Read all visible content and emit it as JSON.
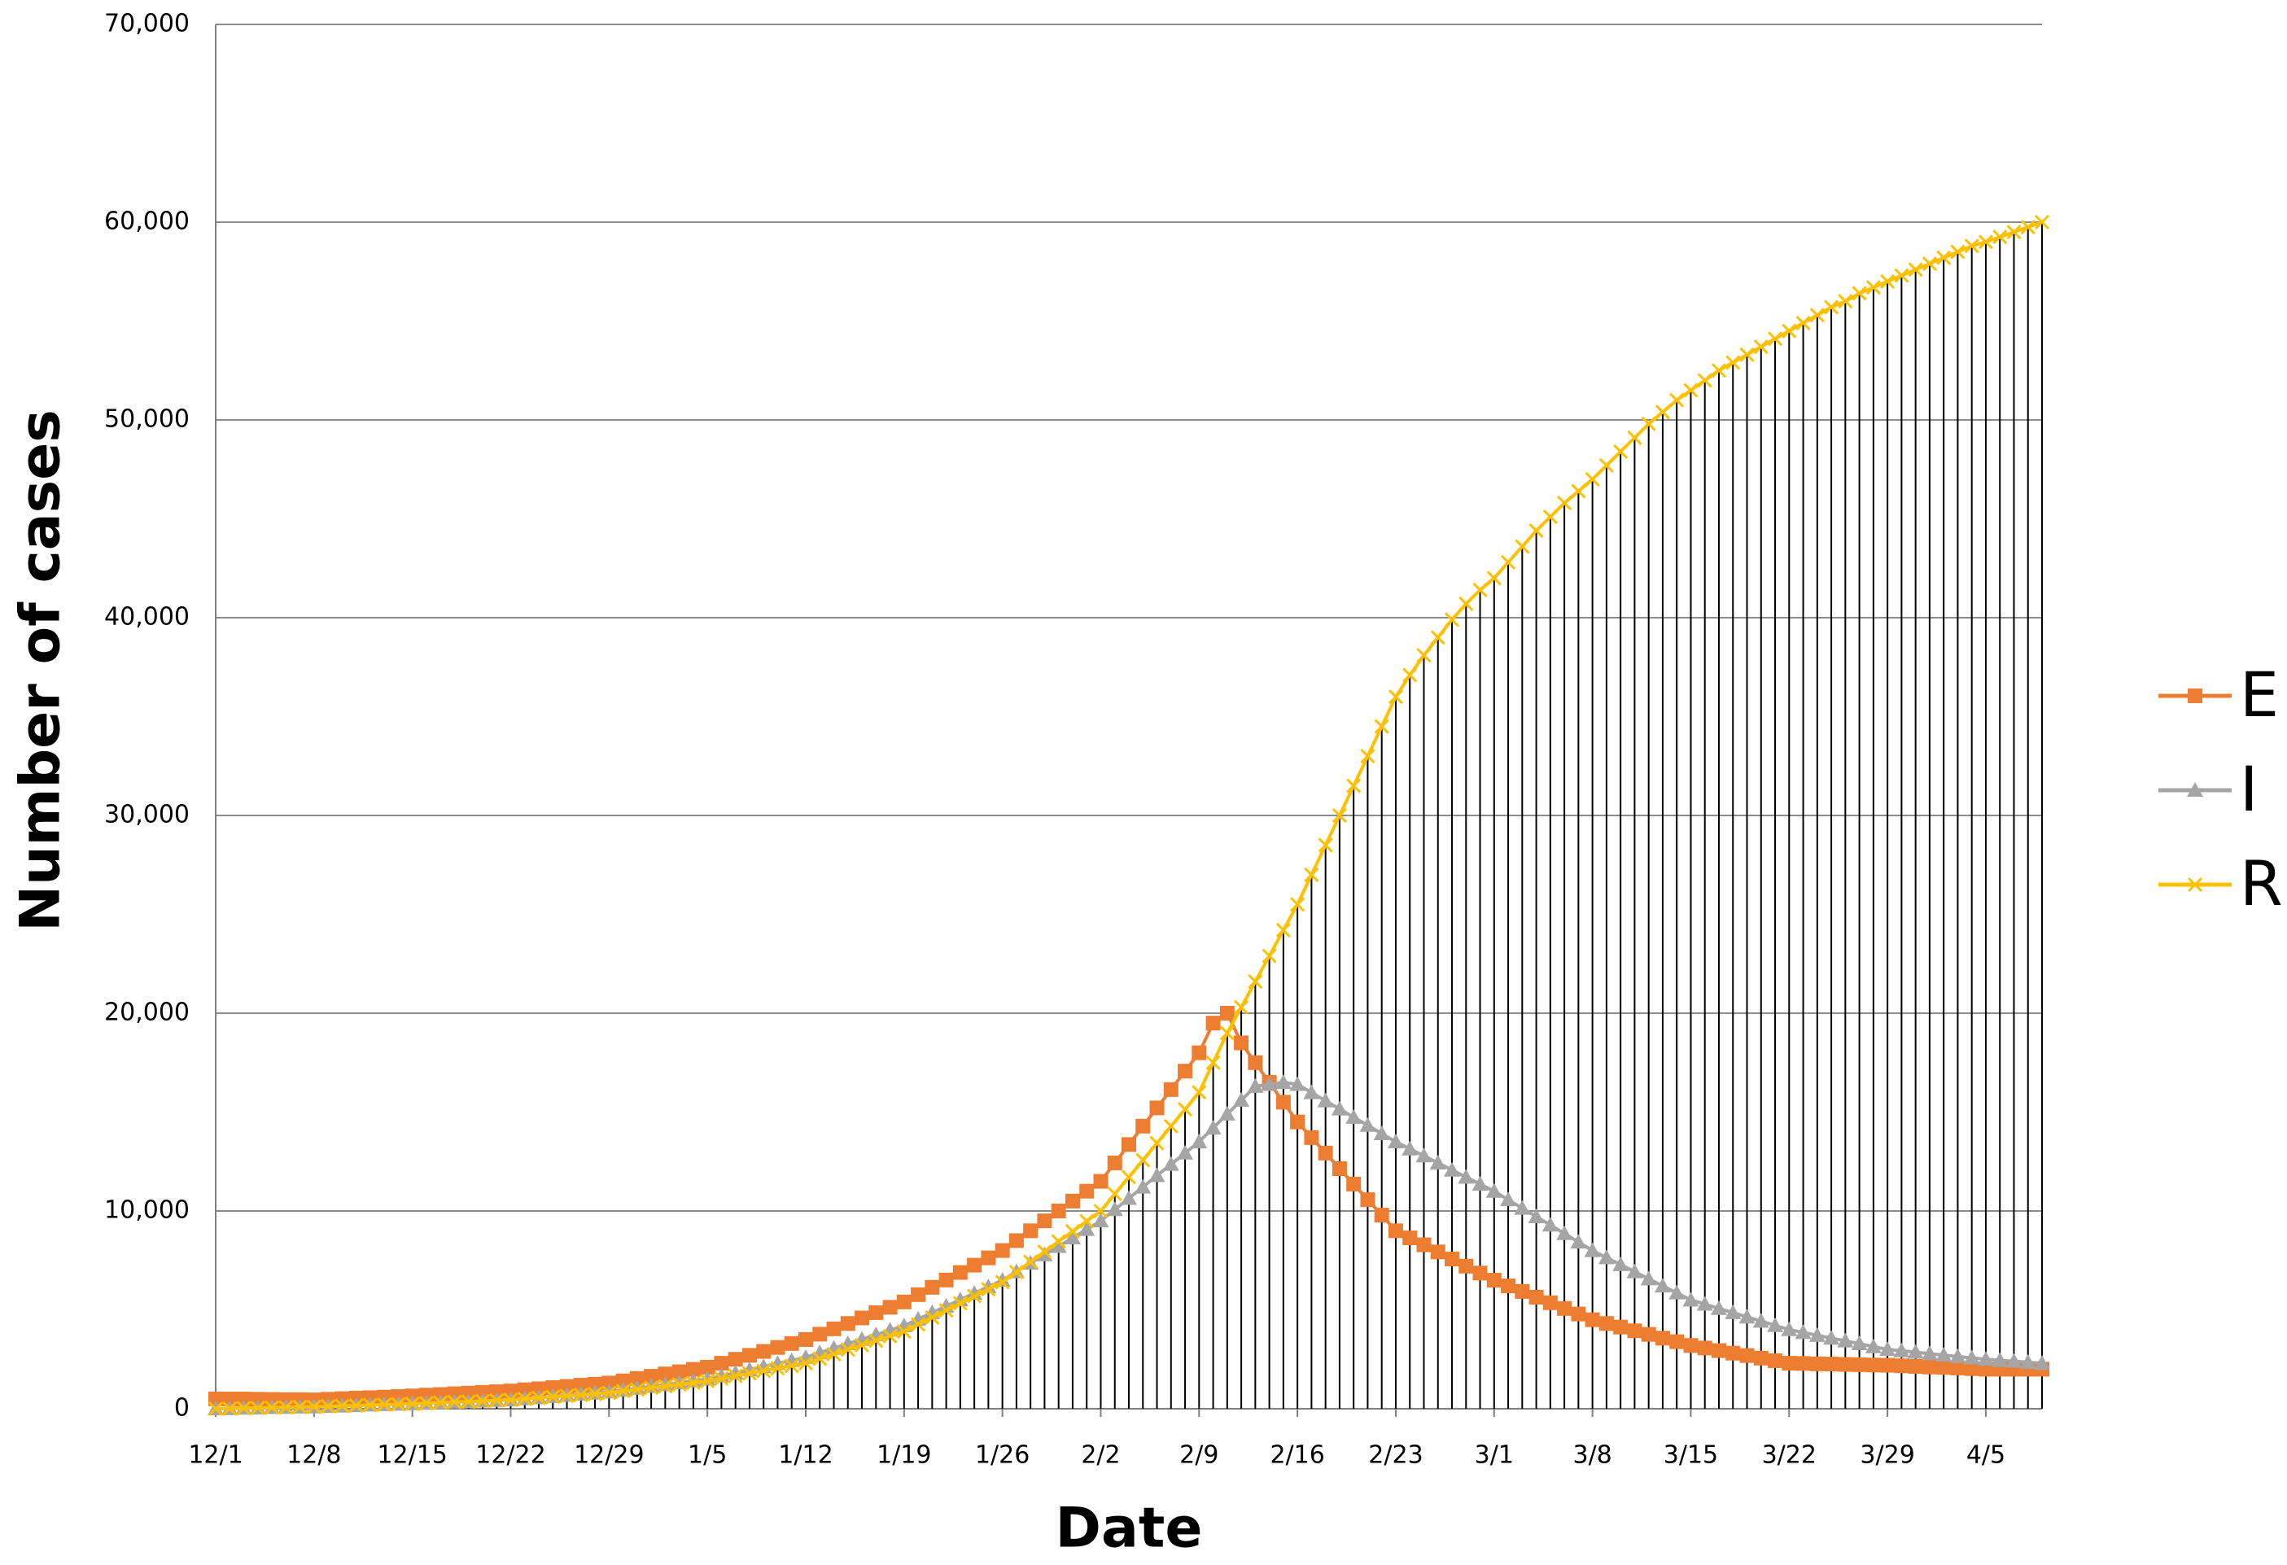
{
  "chart_data": {
    "type": "line",
    "x_label": "Date",
    "y_label": "Number of cases",
    "categories": [
      "12/1",
      null,
      null,
      null,
      null,
      null,
      null,
      "12/8",
      null,
      null,
      null,
      null,
      null,
      null,
      "12/15",
      null,
      null,
      null,
      null,
      null,
      null,
      "12/22",
      null,
      null,
      null,
      null,
      null,
      null,
      "12/29",
      null,
      null,
      null,
      null,
      null,
      null,
      "1/5",
      null,
      null,
      null,
      null,
      null,
      null,
      "1/12",
      null,
      null,
      null,
      null,
      null,
      null,
      "1/19",
      null,
      null,
      null,
      null,
      null,
      null,
      "1/26",
      null,
      null,
      null,
      null,
      null,
      null,
      "2/2",
      null,
      null,
      null,
      null,
      null,
      null,
      "2/9",
      null,
      null,
      null,
      null,
      null,
      null,
      "2/16",
      null,
      null,
      null,
      null,
      null,
      null,
      "2/23",
      null,
      null,
      null,
      null,
      null,
      null,
      "3/1",
      null,
      null,
      null,
      null,
      null,
      null,
      "3/8",
      null,
      null,
      null,
      null,
      null,
      null,
      "3/15",
      null,
      null,
      null,
      null,
      null,
      null,
      "3/22",
      null,
      null,
      null,
      null,
      null,
      null,
      "3/29",
      null,
      null,
      null,
      null,
      null,
      null,
      "4/5",
      null,
      null,
      null,
      null
    ],
    "series": [
      {
        "name": "E",
        "color": "#ED7D31",
        "marker": "square",
        "values": [
          500,
          490,
          490,
          480,
          470,
          460,
          460,
          450,
          480,
          510,
          540,
          560,
          590,
          620,
          650,
          690,
          720,
          760,
          790,
          830,
          860,
          900,
          960,
          1010,
          1070,
          1130,
          1190,
          1240,
          1300,
          1410,
          1530,
          1640,
          1760,
          1870,
          1990,
          2100,
          2300,
          2500,
          2700,
          2900,
          3100,
          3300,
          3500,
          3770,
          4040,
          4310,
          4590,
          4860,
          5130,
          5400,
          5770,
          6140,
          6510,
          6890,
          7260,
          7630,
          8000,
          8500,
          9000,
          9500,
          10000,
          10500,
          11000,
          11500,
          12430,
          13360,
          14290,
          15210,
          16140,
          17070,
          18000,
          19500,
          20000,
          18500,
          17500,
          16500,
          15500,
          14500,
          13710,
          12930,
          12140,
          11360,
          10570,
          9790,
          9000,
          8640,
          8290,
          7930,
          7570,
          7210,
          6860,
          6500,
          6210,
          5930,
          5640,
          5360,
          5070,
          4790,
          4500,
          4310,
          4130,
          3940,
          3760,
          3570,
          3390,
          3200,
          3070,
          2940,
          2810,
          2690,
          2560,
          2430,
          2300,
          2290,
          2270,
          2260,
          2240,
          2230,
          2210,
          2200,
          2170,
          2140,
          2110,
          2090,
          2060,
          2030,
          2000,
          2000,
          2000,
          2000,
          2000
        ]
      },
      {
        "name": "I",
        "color": "#A5A5A5",
        "marker": "triangle",
        "values": [
          0,
          10,
          30,
          40,
          60,
          70,
          90,
          100,
          120,
          140,
          160,
          190,
          210,
          230,
          250,
          280,
          310,
          340,
          360,
          390,
          420,
          450,
          510,
          560,
          620,
          680,
          740,
          790,
          850,
          940,
          1040,
          1130,
          1220,
          1310,
          1410,
          1500,
          1660,
          1810,
          1970,
          2130,
          2290,
          2440,
          2600,
          2830,
          3060,
          3290,
          3510,
          3740,
          3970,
          4200,
          4530,
          4860,
          5190,
          5510,
          5840,
          6170,
          6500,
          6930,
          7360,
          7790,
          8210,
          8640,
          9070,
          9500,
          10070,
          10640,
          11210,
          11790,
          12360,
          12930,
          13500,
          14200,
          14900,
          15600,
          16300,
          16400,
          16500,
          16400,
          15990,
          15570,
          15160,
          14740,
          14330,
          13910,
          13500,
          13140,
          12790,
          12430,
          12070,
          11710,
          11360,
          11000,
          10570,
          10140,
          9710,
          9290,
          8860,
          8430,
          8000,
          7640,
          7290,
          6930,
          6570,
          6210,
          5860,
          5500,
          5290,
          5070,
          4860,
          4640,
          4430,
          4210,
          4000,
          3860,
          3710,
          3570,
          3430,
          3290,
          3140,
          3000,
          2930,
          2860,
          2790,
          2710,
          2640,
          2570,
          2500,
          2450,
          2400,
          2350,
          2300
        ]
      },
      {
        "name": "R",
        "color": "#FFC000",
        "marker": "x",
        "values": [
          0,
          10,
          30,
          40,
          60,
          70,
          90,
          100,
          120,
          140,
          160,
          190,
          210,
          230,
          250,
          280,
          310,
          340,
          360,
          390,
          420,
          450,
          500,
          550,
          600,
          650,
          700,
          750,
          800,
          890,
          970,
          1060,
          1140,
          1230,
          1310,
          1400,
          1530,
          1660,
          1790,
          1910,
          2040,
          2170,
          2300,
          2530,
          2760,
          2990,
          3210,
          3440,
          3670,
          3900,
          4260,
          4610,
          4970,
          5330,
          5690,
          6040,
          6400,
          6910,
          7430,
          7940,
          8460,
          8970,
          9490,
          10000,
          10860,
          11710,
          12570,
          13430,
          14290,
          15140,
          16000,
          17500,
          19000,
          20300,
          21600,
          22900,
          24200,
          25500,
          27000,
          28500,
          30000,
          31500,
          33000,
          34500,
          36000,
          37100,
          38100,
          39000,
          39900,
          40700,
          41400,
          42000,
          42800,
          43600,
          44400,
          45100,
          45800,
          46400,
          47000,
          47700,
          48400,
          49100,
          49800,
          50400,
          51000,
          51500,
          52000,
          52500,
          52900,
          53300,
          53700,
          54100,
          54500,
          54900,
          55300,
          55700,
          56000,
          56400,
          56700,
          57000,
          57300,
          57600,
          57900,
          58200,
          58500,
          58800,
          59000,
          59250,
          59500,
          59750,
          60000
        ],
        "drop_lines": true
      }
    ],
    "ylim": [
      0,
      70000
    ],
    "yticks": [
      0,
      {
        "value": 10000,
        "label": "10,000"
      },
      {
        "value": 20000,
        "label": "20,000"
      },
      {
        "value": 30000,
        "label": "30,000"
      },
      {
        "value": 40000,
        "label": "40,000"
      },
      {
        "value": 50000,
        "label": "50,000"
      },
      {
        "value": 60000,
        "label": "60,000"
      },
      {
        "value": 70000,
        "label": "70,000"
      }
    ],
    "grid": true,
    "legend": "right"
  }
}
